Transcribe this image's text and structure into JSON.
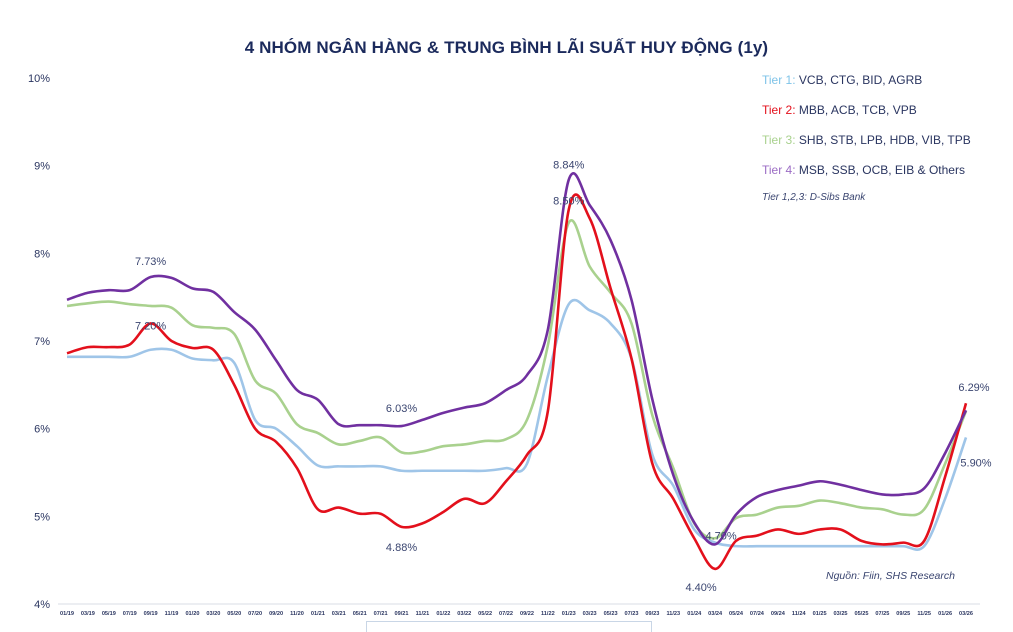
{
  "chart_data": {
    "type": "line",
    "title": "4 NHÓM NGÂN HÀNG & TRUNG BÌNH LÃI SUẤT HUY ĐỘNG (1y)",
    "xlabel": "",
    "ylabel": "",
    "ylim": [
      4,
      10
    ],
    "yticks": [
      "4%",
      "5%",
      "6%",
      "7%",
      "8%",
      "9%",
      "10%"
    ],
    "grid": false,
    "legend_position": "top-right",
    "categories": [
      "01/19",
      "03/19",
      "05/19",
      "07/19",
      "09/19",
      "11/19",
      "01/20",
      "03/20",
      "05/20",
      "07/20",
      "09/20",
      "11/20",
      "01/21",
      "03/21",
      "05/21",
      "07/21",
      "09/21",
      "11/21",
      "01/22",
      "03/22",
      "05/22",
      "07/22",
      "09/22",
      "11/22",
      "01/23",
      "03/23",
      "05/23",
      "07/23",
      "09/23",
      "11/23",
      "01/24",
      "03/24",
      "05/24",
      "07/24",
      "09/24",
      "11/24",
      "01/25",
      "03/25",
      "05/25",
      "07/25",
      "09/25",
      "11/25",
      "01/26",
      "03/26"
    ],
    "series": [
      {
        "name": "Tier 1",
        "members": "VCB, CTG, BID, AGRB",
        "color": "#9fc5e8",
        "values": [
          6.82,
          6.82,
          6.82,
          6.82,
          6.9,
          6.9,
          6.8,
          6.78,
          6.75,
          6.1,
          6.0,
          5.8,
          5.58,
          5.57,
          5.57,
          5.57,
          5.52,
          5.52,
          5.52,
          5.52,
          5.52,
          5.55,
          5.6,
          6.6,
          7.42,
          7.35,
          7.2,
          6.8,
          5.7,
          5.35,
          4.85,
          4.7,
          4.66,
          4.66,
          4.66,
          4.66,
          4.66,
          4.66,
          4.66,
          4.66,
          4.66,
          4.66,
          5.2,
          5.9
        ]
      },
      {
        "name": "Tier 2",
        "members": "MBB, ACB, TCB, VPB",
        "color": "#e3101c",
        "values": [
          6.86,
          6.93,
          6.93,
          6.96,
          7.2,
          7.0,
          6.92,
          6.9,
          6.5,
          6.0,
          5.85,
          5.55,
          5.08,
          5.1,
          5.03,
          5.03,
          4.88,
          4.92,
          5.05,
          5.2,
          5.15,
          5.4,
          5.7,
          6.2,
          8.5,
          8.4,
          7.6,
          6.8,
          5.6,
          5.2,
          4.75,
          4.4,
          4.72,
          4.78,
          4.85,
          4.8,
          4.85,
          4.85,
          4.72,
          4.68,
          4.7,
          4.72,
          5.45,
          6.29
        ]
      },
      {
        "name": "Tier 3",
        "members": "SHB, STB, LPB, HDB, VIB, TPB",
        "color": "#a9d18e",
        "values": [
          7.4,
          7.43,
          7.45,
          7.42,
          7.4,
          7.38,
          7.18,
          7.15,
          7.08,
          6.55,
          6.4,
          6.05,
          5.95,
          5.82,
          5.86,
          5.9,
          5.73,
          5.74,
          5.8,
          5.82,
          5.86,
          5.88,
          6.1,
          6.95,
          8.35,
          7.85,
          7.55,
          7.2,
          6.15,
          5.55,
          4.92,
          4.75,
          4.98,
          5.02,
          5.1,
          5.12,
          5.18,
          5.15,
          5.1,
          5.08,
          5.02,
          5.08,
          5.6,
          6.2
        ]
      },
      {
        "name": "Tier 4",
        "members": "MSB, SSB, OCB, EIB & Others",
        "color": "#7030a0",
        "values": [
          7.47,
          7.55,
          7.58,
          7.58,
          7.73,
          7.72,
          7.6,
          7.56,
          7.33,
          7.13,
          6.78,
          6.44,
          6.33,
          6.05,
          6.04,
          6.04,
          6.03,
          6.1,
          6.18,
          6.24,
          6.29,
          6.44,
          6.61,
          7.13,
          8.84,
          8.55,
          8.15,
          7.47,
          6.33,
          5.47,
          4.93,
          4.68,
          5.02,
          5.22,
          5.3,
          5.35,
          5.4,
          5.36,
          5.3,
          5.25,
          5.25,
          5.32,
          5.72,
          6.21
        ]
      }
    ],
    "annotations": [
      {
        "text": "7.73%",
        "x": "09/19",
        "y": 7.73
      },
      {
        "text": "7.20%",
        "x": "09/19",
        "y": 7.2
      },
      {
        "text": "6.03%",
        "x": "09/21",
        "y": 6.03
      },
      {
        "text": "4.88%",
        "x": "09/21",
        "y": 4.88
      },
      {
        "text": "8.84%",
        "x": "01/23",
        "y": 8.84
      },
      {
        "text": "8.50%",
        "x": "01/23",
        "y": 8.5
      },
      {
        "text": "4.70%",
        "x": "03/24",
        "y": 4.7
      },
      {
        "text": "4.40%",
        "x": "03/24",
        "y": 4.4
      },
      {
        "text": "6.29%",
        "x": "03/26",
        "y": 6.29
      },
      {
        "text": "5.90%",
        "x": "03/26",
        "y": 5.9
      }
    ]
  },
  "legend": {
    "tier1_label": "Tier 1:",
    "tier1_members": "VCB, CTG, BID, AGRB",
    "tier2_label": "Tier 2:",
    "tier2_members": "MBB, ACB, TCB, VPB",
    "tier3_label": "Tier 3:",
    "tier3_members": "SHB, STB, LPB, HDB, VIB, TPB",
    "tier4_label": "Tier 4:",
    "tier4_members": "MSB, SSB, OCB, EIB & Others",
    "note": "Tier 1,2,3: D-Sibs Bank"
  },
  "source": "Nguồn: Fiin, SHS Research"
}
